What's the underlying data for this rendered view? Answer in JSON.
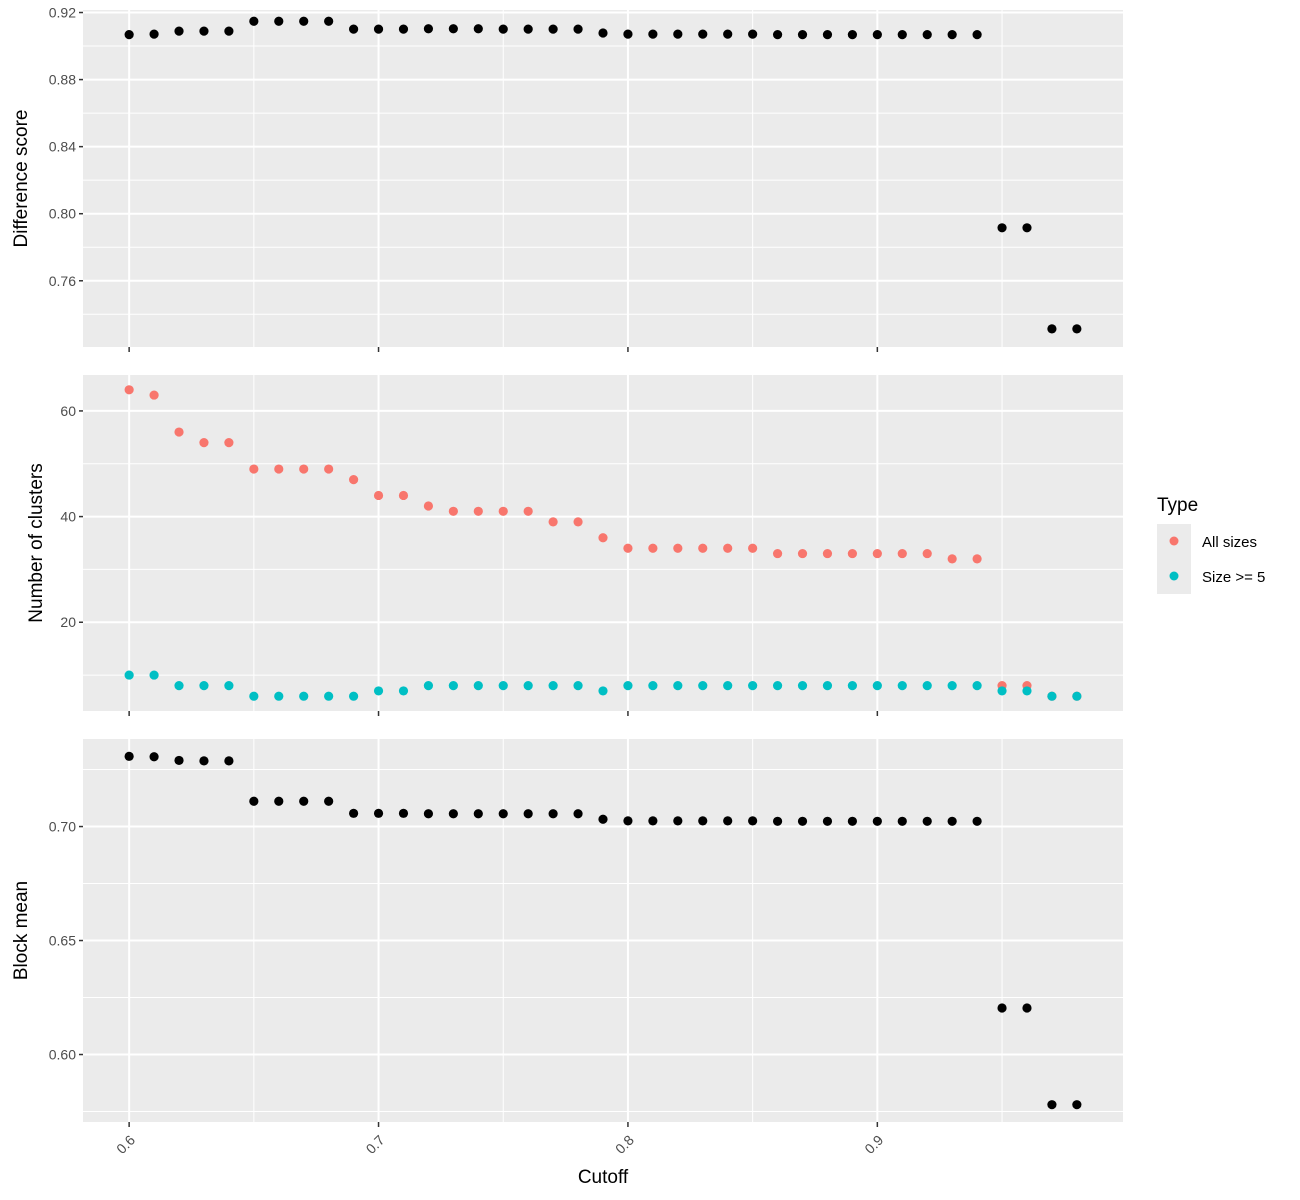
{
  "chart_data": [
    {
      "type": "scatter",
      "ylabel": "Difference score",
      "ylim": [
        0.7205,
        0.9215
      ],
      "y_ticks": [
        "0.76",
        "0.80",
        "0.84",
        "0.88",
        "0.92"
      ],
      "series": [
        {
          "color": "#000000",
          "points": [
            [
              0.6,
              0.9068
            ],
            [
              0.61,
              0.9071
            ],
            [
              0.62,
              0.9089
            ],
            [
              0.63,
              0.9089
            ],
            [
              0.64,
              0.9089
            ],
            [
              0.65,
              0.9148
            ],
            [
              0.66,
              0.9148
            ],
            [
              0.67,
              0.9148
            ],
            [
              0.68,
              0.9148
            ],
            [
              0.69,
              0.9101
            ],
            [
              0.7,
              0.9101
            ],
            [
              0.71,
              0.9101
            ],
            [
              0.72,
              0.9103
            ],
            [
              0.73,
              0.9103
            ],
            [
              0.74,
              0.9103
            ],
            [
              0.75,
              0.9101
            ],
            [
              0.76,
              0.9101
            ],
            [
              0.77,
              0.9101
            ],
            [
              0.78,
              0.9101
            ],
            [
              0.79,
              0.9078
            ],
            [
              0.8,
              0.9071
            ],
            [
              0.81,
              0.9071
            ],
            [
              0.82,
              0.9071
            ],
            [
              0.83,
              0.9071
            ],
            [
              0.84,
              0.9071
            ],
            [
              0.85,
              0.9071
            ],
            [
              0.86,
              0.9068
            ],
            [
              0.87,
              0.9068
            ],
            [
              0.88,
              0.9068
            ],
            [
              0.89,
              0.9068
            ],
            [
              0.9,
              0.9068
            ],
            [
              0.91,
              0.9068
            ],
            [
              0.92,
              0.9068
            ],
            [
              0.93,
              0.9068
            ],
            [
              0.94,
              0.9068
            ],
            [
              0.95,
              0.7916
            ],
            [
              0.96,
              0.7916
            ],
            [
              0.97,
              0.7313
            ],
            [
              0.98,
              0.7313
            ]
          ]
        }
      ]
    },
    {
      "type": "scatter",
      "ylabel": "Number of clusters",
      "ylim": [
        3.2,
        66.8
      ],
      "y_ticks": [
        "20",
        "40",
        "60"
      ],
      "legend": {
        "title": "Type",
        "placement": "right",
        "entries": [
          {
            "label": "All sizes",
            "color": "#f8766d"
          },
          {
            "label": "Size >= 5",
            "color": "#00bfc4"
          }
        ]
      },
      "series": [
        {
          "name": "All sizes",
          "color": "#f8766d",
          "points": [
            [
              0.6,
              64
            ],
            [
              0.61,
              63
            ],
            [
              0.62,
              56
            ],
            [
              0.63,
              54
            ],
            [
              0.64,
              54
            ],
            [
              0.65,
              49
            ],
            [
              0.66,
              49
            ],
            [
              0.67,
              49
            ],
            [
              0.68,
              49
            ],
            [
              0.69,
              47
            ],
            [
              0.7,
              44
            ],
            [
              0.71,
              44
            ],
            [
              0.72,
              42
            ],
            [
              0.73,
              41
            ],
            [
              0.74,
              41
            ],
            [
              0.75,
              41
            ],
            [
              0.76,
              41
            ],
            [
              0.77,
              39
            ],
            [
              0.78,
              39
            ],
            [
              0.79,
              36
            ],
            [
              0.8,
              34
            ],
            [
              0.81,
              34
            ],
            [
              0.82,
              34
            ],
            [
              0.83,
              34
            ],
            [
              0.84,
              34
            ],
            [
              0.85,
              34
            ],
            [
              0.86,
              33
            ],
            [
              0.87,
              33
            ],
            [
              0.88,
              33
            ],
            [
              0.89,
              33
            ],
            [
              0.9,
              33
            ],
            [
              0.91,
              33
            ],
            [
              0.92,
              33
            ],
            [
              0.93,
              32
            ],
            [
              0.94,
              32
            ],
            [
              0.95,
              8
            ],
            [
              0.96,
              8
            ],
            [
              0.97,
              6
            ],
            [
              0.98,
              6
            ]
          ]
        },
        {
          "name": "Size >= 5",
          "color": "#00bfc4",
          "points": [
            [
              0.6,
              10
            ],
            [
              0.61,
              10
            ],
            [
              0.62,
              8
            ],
            [
              0.63,
              8
            ],
            [
              0.64,
              8
            ],
            [
              0.65,
              6
            ],
            [
              0.66,
              6
            ],
            [
              0.67,
              6
            ],
            [
              0.68,
              6
            ],
            [
              0.69,
              6
            ],
            [
              0.7,
              7
            ],
            [
              0.71,
              7
            ],
            [
              0.72,
              8
            ],
            [
              0.73,
              8
            ],
            [
              0.74,
              8
            ],
            [
              0.75,
              8
            ],
            [
              0.76,
              8
            ],
            [
              0.77,
              8
            ],
            [
              0.78,
              8
            ],
            [
              0.79,
              7
            ],
            [
              0.8,
              8
            ],
            [
              0.81,
              8
            ],
            [
              0.82,
              8
            ],
            [
              0.83,
              8
            ],
            [
              0.84,
              8
            ],
            [
              0.85,
              8
            ],
            [
              0.86,
              8
            ],
            [
              0.87,
              8
            ],
            [
              0.88,
              8
            ],
            [
              0.89,
              8
            ],
            [
              0.9,
              8
            ],
            [
              0.91,
              8
            ],
            [
              0.92,
              8
            ],
            [
              0.93,
              8
            ],
            [
              0.94,
              8
            ],
            [
              0.95,
              7
            ],
            [
              0.96,
              7
            ],
            [
              0.97,
              6
            ],
            [
              0.98,
              6
            ]
          ]
        }
      ]
    },
    {
      "type": "scatter",
      "ylabel": "Block mean",
      "ylim": [
        0.5704,
        0.7384
      ],
      "y_ticks": [
        "0.60",
        "0.65",
        "0.70"
      ],
      "x_ticks": [
        "0.6",
        "0.7",
        "0.8",
        "0.9"
      ],
      "xlabel": "Cutoff",
      "series": [
        {
          "color": "#000000",
          "points": [
            [
              0.6,
              0.7308
            ],
            [
              0.61,
              0.7306
            ],
            [
              0.62,
              0.729
            ],
            [
              0.63,
              0.7288
            ],
            [
              0.64,
              0.7288
            ],
            [
              0.65,
              0.7111
            ],
            [
              0.66,
              0.7111
            ],
            [
              0.67,
              0.7111
            ],
            [
              0.68,
              0.7111
            ],
            [
              0.69,
              0.7058
            ],
            [
              0.7,
              0.7058
            ],
            [
              0.71,
              0.7058
            ],
            [
              0.72,
              0.7056
            ],
            [
              0.73,
              0.7056
            ],
            [
              0.74,
              0.7056
            ],
            [
              0.75,
              0.7056
            ],
            [
              0.76,
              0.7056
            ],
            [
              0.77,
              0.7056
            ],
            [
              0.78,
              0.7056
            ],
            [
              0.79,
              0.7032
            ],
            [
              0.8,
              0.7025
            ],
            [
              0.81,
              0.7025
            ],
            [
              0.82,
              0.7025
            ],
            [
              0.83,
              0.7025
            ],
            [
              0.84,
              0.7025
            ],
            [
              0.85,
              0.7025
            ],
            [
              0.86,
              0.7023
            ],
            [
              0.87,
              0.7023
            ],
            [
              0.88,
              0.7023
            ],
            [
              0.89,
              0.7023
            ],
            [
              0.9,
              0.7023
            ],
            [
              0.91,
              0.7023
            ],
            [
              0.92,
              0.7023
            ],
            [
              0.93,
              0.7023
            ],
            [
              0.94,
              0.7023
            ],
            [
              0.95,
              0.6204
            ],
            [
              0.96,
              0.6204
            ],
            [
              0.97,
              0.578
            ],
            [
              0.98,
              0.578
            ]
          ]
        }
      ]
    }
  ],
  "x_axis": {
    "xlim": [
      0.5815,
      0.9985
    ],
    "major": [
      0.6,
      0.7,
      0.8,
      0.9
    ],
    "minor": [
      0.65,
      0.75,
      0.85,
      0.95
    ]
  }
}
